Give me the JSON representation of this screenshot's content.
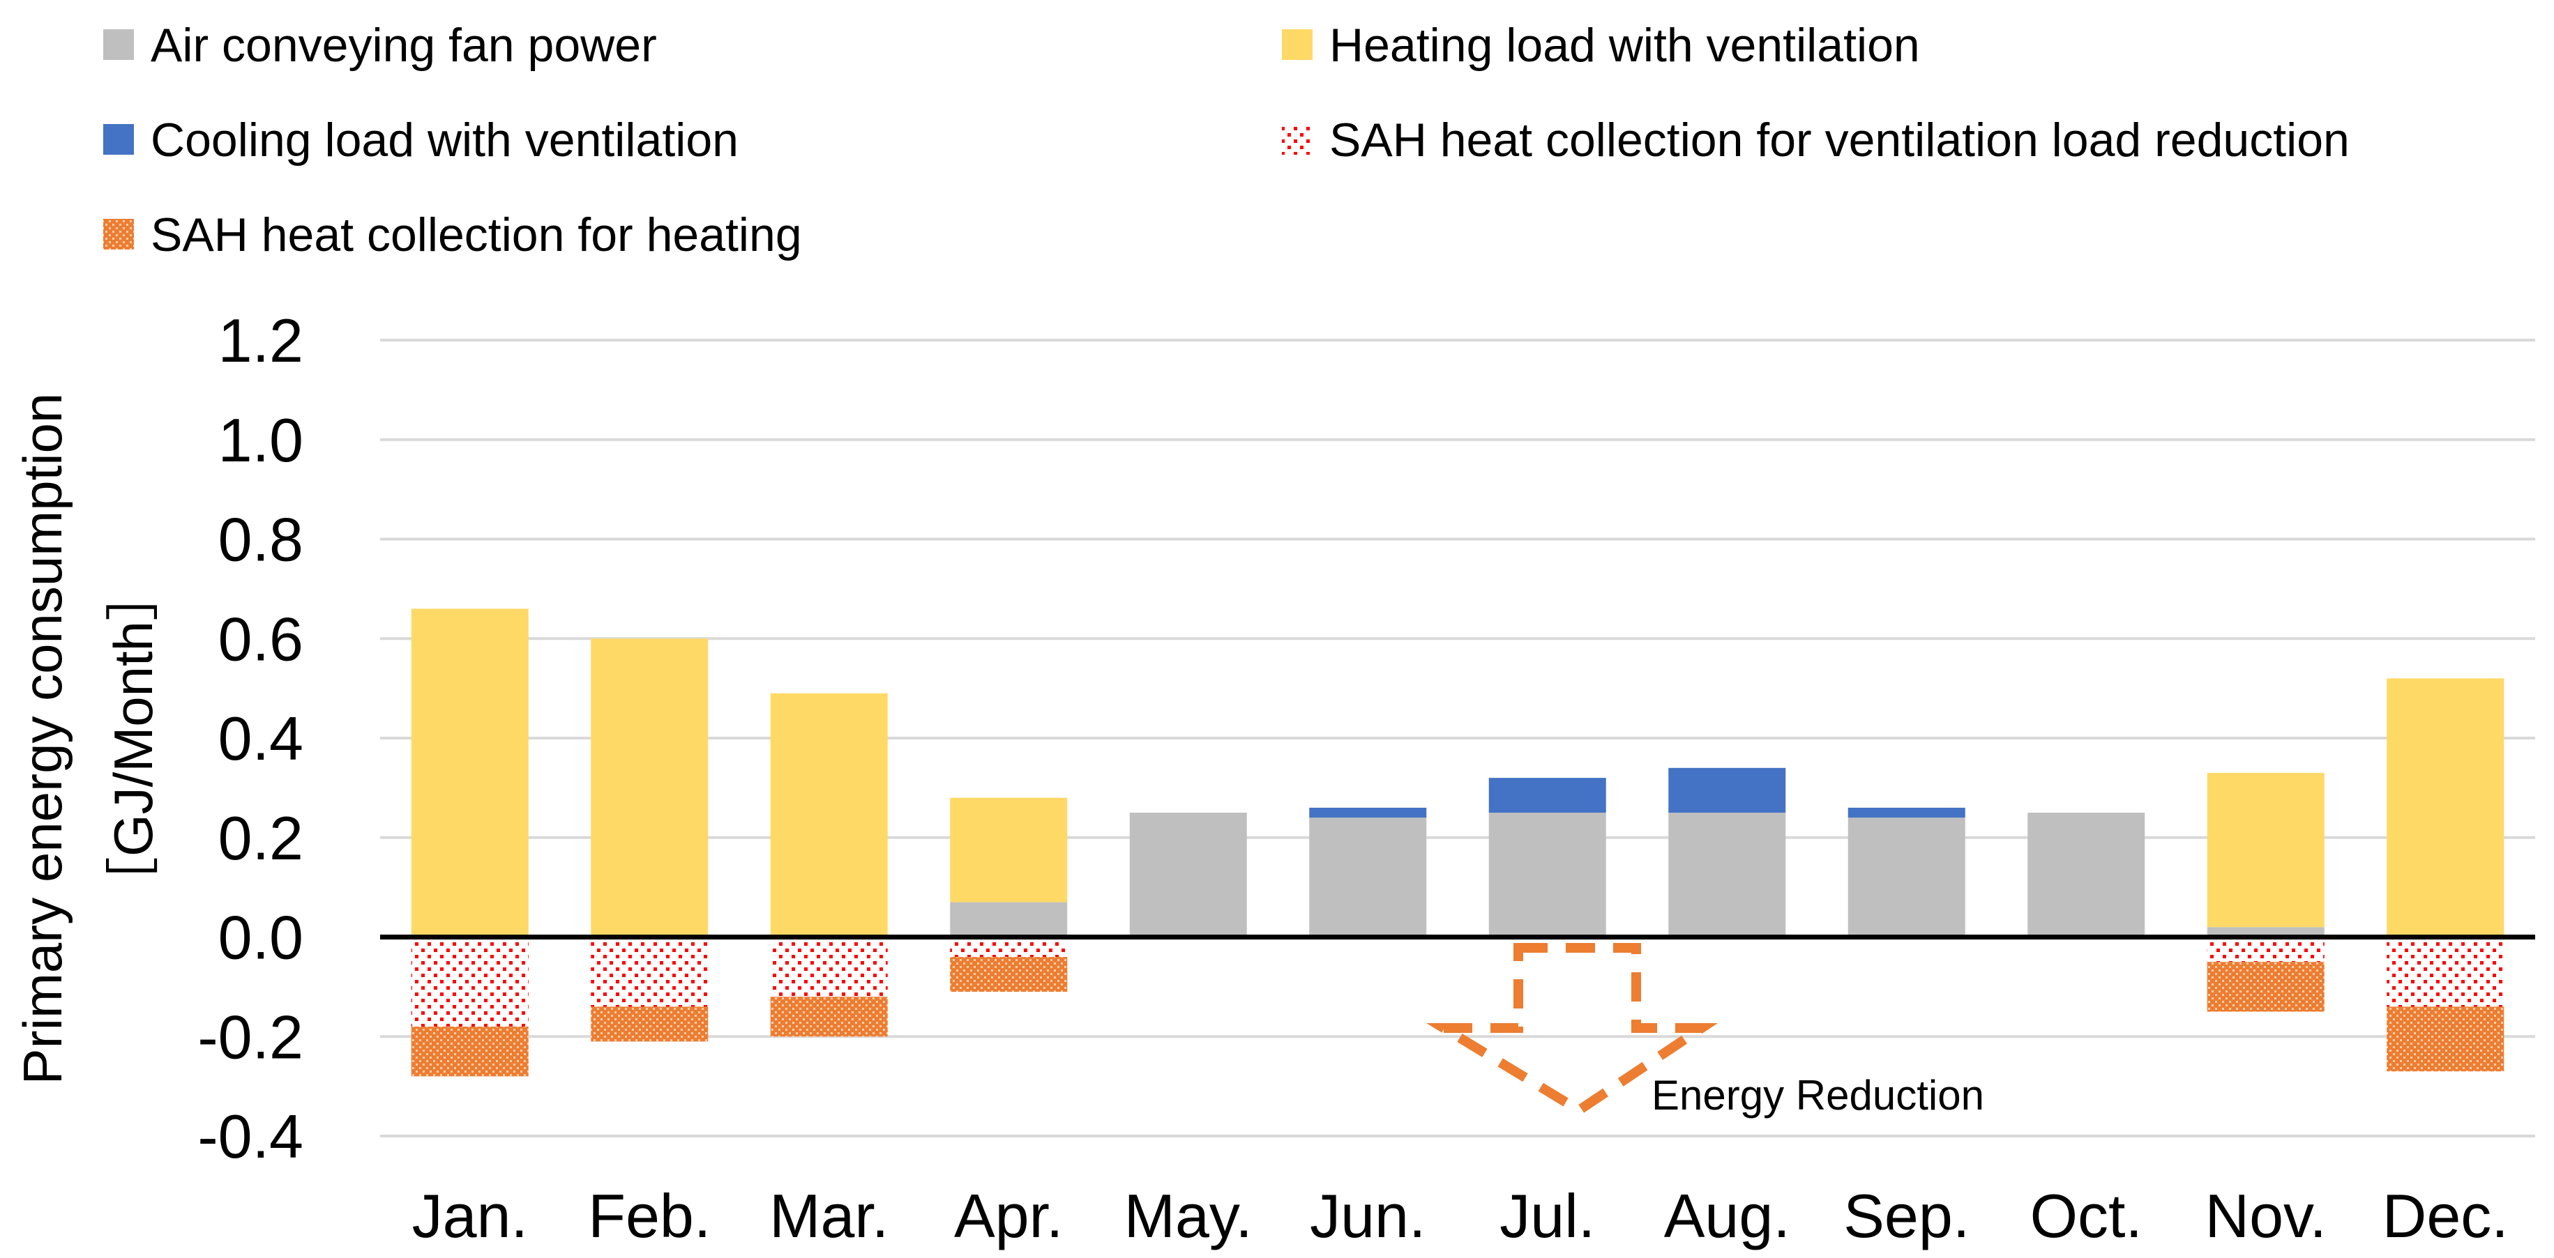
{
  "chart_data": {
    "type": "bar",
    "stacked": true,
    "title": "",
    "xlabel": "",
    "ylabel": "Primary energy consumption",
    "ylabel_unit": "［GJ/Month］",
    "ylim": [
      -0.4,
      1.2
    ],
    "yticks": [
      1.2,
      1.0,
      0.8,
      0.6,
      0.4,
      0.2,
      0.0,
      -0.2,
      -0.4
    ],
    "ytick_labels": [
      "1.2",
      "1.0",
      "0.8",
      "0.6",
      "0.4",
      "0.2",
      "0.0",
      "-0.2",
      "-0.4"
    ],
    "grid": true,
    "legend_position": "top",
    "categories": [
      "Jan.",
      "Feb.",
      "Mar.",
      "Apr.",
      "May.",
      "Jun.",
      "Jul.",
      "Aug.",
      "Sep.",
      "Oct.",
      "Nov.",
      "Dec."
    ],
    "series": [
      {
        "name": "Air conveying fan power",
        "color": "#BFBFBF",
        "pattern": "solid",
        "values": [
          0,
          0,
          0,
          0.07,
          0.25,
          0.24,
          0.25,
          0.25,
          0.24,
          0.25,
          0.02,
          0
        ]
      },
      {
        "name": "Heating load with ventilation",
        "color": "#FFD966",
        "pattern": "solid",
        "values": [
          0.66,
          0.6,
          0.49,
          0.21,
          0,
          0,
          0,
          0,
          0,
          0,
          0.31,
          0.52
        ]
      },
      {
        "name": "Cooling load with ventilation",
        "color": "#4472C4",
        "pattern": "solid",
        "values": [
          0,
          0,
          0,
          0,
          0,
          0.02,
          0.07,
          0.09,
          0.02,
          0,
          0,
          0
        ]
      },
      {
        "name": "SAH heat collection for ventilation load reduction",
        "color": "#FF0000",
        "pattern": "dots",
        "values": [
          -0.18,
          -0.14,
          -0.12,
          -0.04,
          0,
          0,
          0,
          0,
          0,
          0,
          -0.05,
          -0.14
        ]
      },
      {
        "name": "SAH heat collection for heating",
        "color": "#ED7D31",
        "pattern": "dense",
        "values": [
          -0.1,
          -0.07,
          -0.08,
          -0.07,
          0,
          0,
          0,
          0,
          0,
          0,
          -0.1,
          -0.13
        ]
      }
    ],
    "annotations": [
      {
        "text": "Energy Reduction",
        "near_category": "Jul.",
        "type": "dashed-down-arrow"
      }
    ]
  }
}
